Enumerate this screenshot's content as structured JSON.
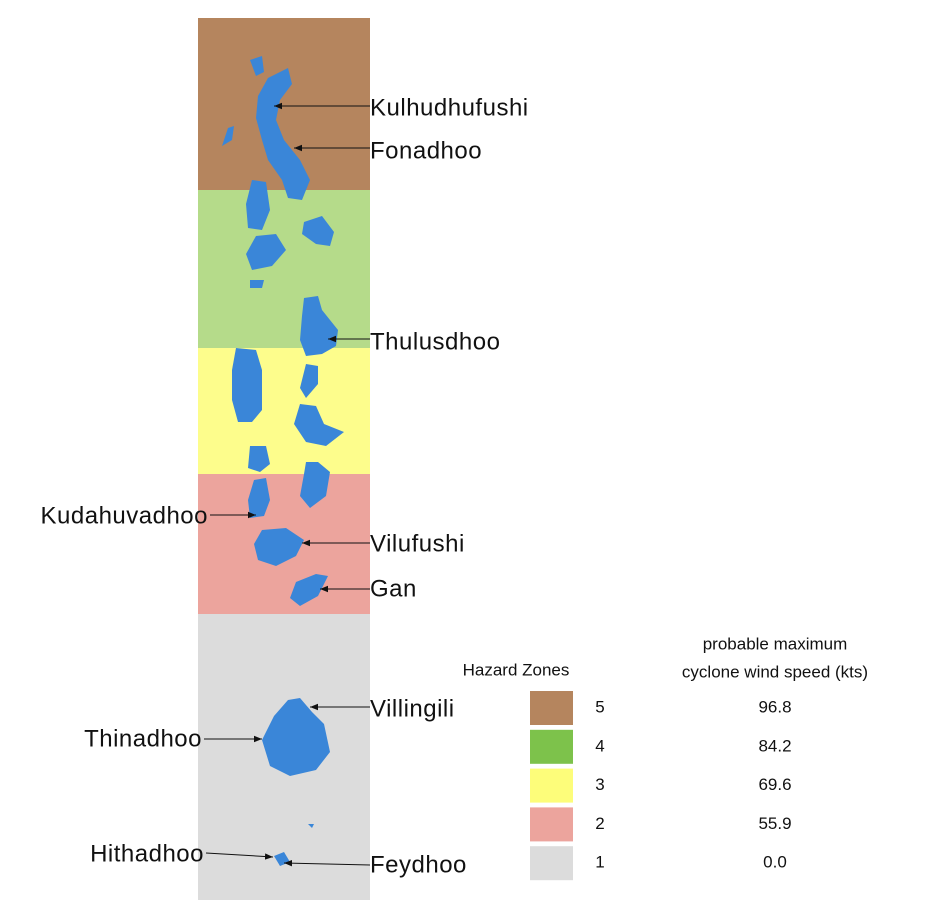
{
  "labels": [
    "Kulhudhufushi",
    "Fonadhoo",
    "Thulusdhoo",
    "Kudahuvadhoo",
    "Vilufushi",
    "Gan",
    "Villingili",
    "Thinadhoo",
    "Hithadhoo",
    "Feydhoo"
  ],
  "legend": {
    "title": "Hazard Zones",
    "value_title": [
      "probable maximum",
      "cyclone wind speed (kts)"
    ],
    "rows": [
      {
        "zone": "5",
        "wind": "96.8"
      },
      {
        "zone": "4",
        "wind": "84.2"
      },
      {
        "zone": "3",
        "wind": "69.6"
      },
      {
        "zone": "2",
        "wind": "55.9"
      },
      {
        "zone": "1",
        "wind": "0.0"
      }
    ]
  }
}
